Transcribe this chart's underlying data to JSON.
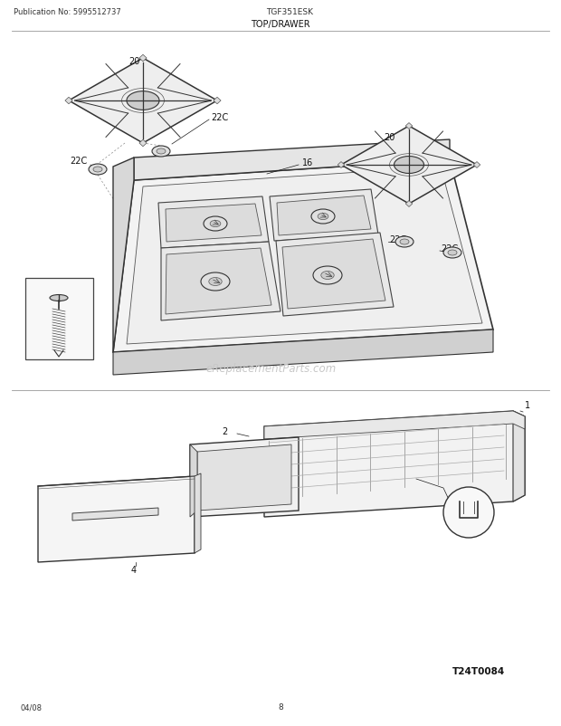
{
  "pub_no": "Publication No: 5995512737",
  "model": "TGF351ESK",
  "section": "TOP/DRAWER",
  "watermark": "eReplacementParts.com",
  "diagram_code": "T24T0084",
  "page": "8",
  "date": "04/08",
  "bg_color": "#ffffff",
  "line_color": "#1a1a1a",
  "text_color": "#111111",
  "watermark_color": "#c8c8c8"
}
